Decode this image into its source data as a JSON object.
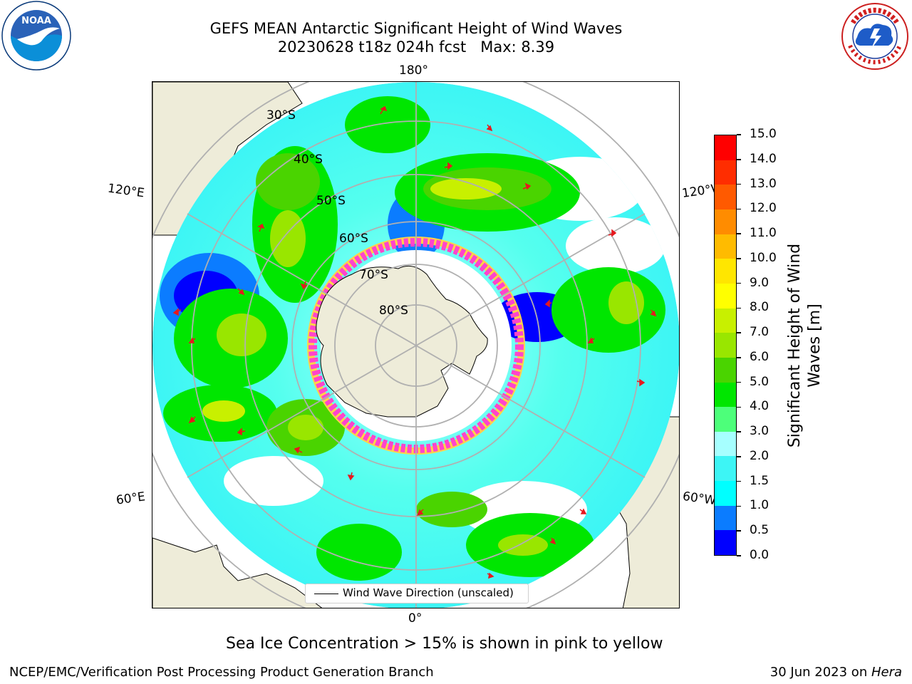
{
  "title": {
    "line1": "GEFS MEAN Antarctic Significant Height of Wind Waves",
    "line2": "20230628 t18z 024h fcst   Max: 8.39"
  },
  "logos": {
    "left": {
      "name": "NOAA",
      "ring_text": "NATIONAL OCEANIC AND ATMOSPHERIC ADMINISTRATION · U.S. DEPARTMENT OF COMMERCE"
    },
    "right": {
      "name": "NATIONAL WEATHER SERVICE"
    }
  },
  "map": {
    "projection": "south-polar-stereographic",
    "longitude_labels": [
      "180°",
      "120°E",
      "120°W",
      "60°E",
      "60°W",
      "0°"
    ],
    "latitude_labels": [
      "30°S",
      "40°S",
      "50°S",
      "60°S",
      "70°S",
      "80°S"
    ],
    "legend": {
      "label": "Wind Wave Direction (unscaled)"
    },
    "colors": {
      "land": "#eeecd9",
      "grid": "#b0b0b0",
      "arrow": "#e6191e",
      "sea_ice": [
        "#ff44cc",
        "#ffd24a"
      ]
    }
  },
  "colorbar": {
    "label_line1": "Significant Height of Wind",
    "label_line2": "Waves [m]",
    "ticks": [
      "0.0",
      "0.5",
      "1.0",
      "1.5",
      "2.0",
      "3.0",
      "4.0",
      "5.0",
      "6.0",
      "7.0",
      "8.0",
      "9.0",
      "10.0",
      "11.0",
      "12.0",
      "13.0",
      "14.0",
      "15.0"
    ],
    "colors": [
      "#0000ff",
      "#0b7cff",
      "#00ffff",
      "#3df5f5",
      "#a6ffff",
      "#4dff7a",
      "#00e600",
      "#4ad400",
      "#99e600",
      "#c8f000",
      "#ffff00",
      "#ffe600",
      "#ffbb00",
      "#ff8c00",
      "#ff5a00",
      "#ff2d00",
      "#ff0000"
    ]
  },
  "note": "Sea Ice Concentration > 15% is shown in pink to yellow",
  "footer": {
    "left": "NCEP/EMC/Verification Post Processing Product Generation Branch",
    "right_date": "30 Jun 2023 on ",
    "right_host": "Hera"
  }
}
